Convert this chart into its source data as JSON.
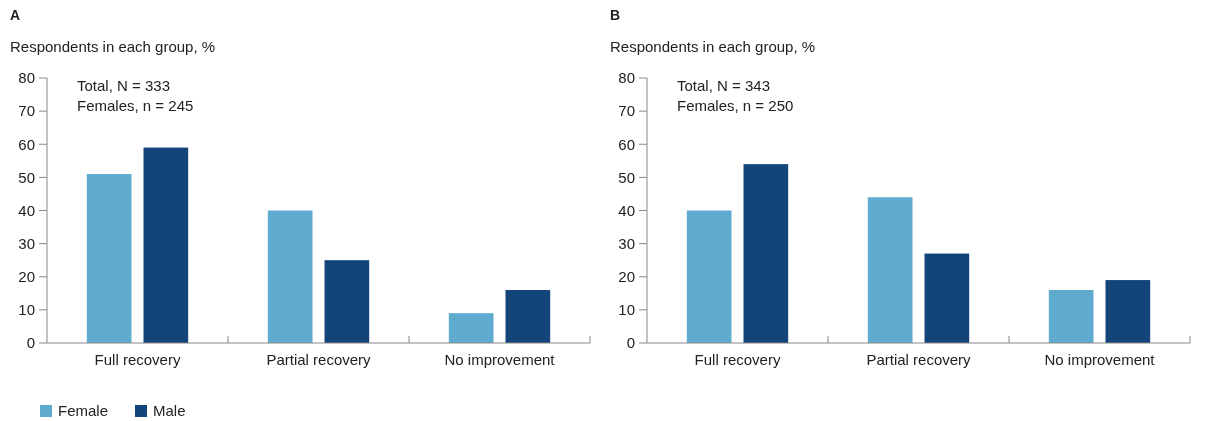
{
  "chart_data": [
    {
      "type": "bar",
      "title": "A",
      "ylabel": "Respondents in each group, %",
      "annotations": [
        "Total, N = 333",
        "Females, n = 245"
      ],
      "categories": [
        "Full recovery",
        "Partial recovery",
        "No improvement"
      ],
      "series": [
        {
          "name": "Female",
          "color": "#5eabcf",
          "values": [
            51,
            40,
            9
          ]
        },
        {
          "name": "Male",
          "color": "#13457a",
          "values": [
            59,
            25,
            16
          ]
        }
      ],
      "ylim": [
        0,
        80
      ],
      "yticks": [
        0,
        10,
        20,
        30,
        40,
        50,
        60,
        70,
        80
      ],
      "grid": false,
      "legend": "bottom left"
    },
    {
      "type": "bar",
      "title": "B",
      "ylabel": "Respondents in each group, %",
      "annotations": [
        "Total, N = 343",
        "Females, n = 250"
      ],
      "categories": [
        "Full recovery",
        "Partial recovery",
        "No improvement"
      ],
      "series": [
        {
          "color": "#5eabcf",
          "values": [
            40,
            44,
            16
          ]
        },
        {
          "color": "#13457a",
          "values": [
            54,
            27,
            19
          ]
        }
      ],
      "ylim": [
        0,
        80
      ],
      "yticks": [
        0,
        10,
        20,
        30,
        40,
        50,
        60,
        70,
        80
      ],
      "grid": false,
      "legend": false
    }
  ]
}
